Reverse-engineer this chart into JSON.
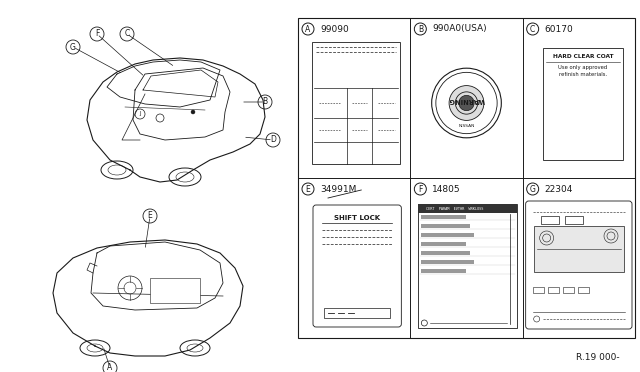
{
  "bg_color": "#ffffff",
  "line_color": "#1a1a1a",
  "figure_width": 6.4,
  "figure_height": 3.72,
  "title_ref": "R.19 000-",
  "gx0": 298,
  "gy0": 18,
  "gx1": 635,
  "gy1": 338,
  "cells": [
    {
      "label": "A",
      "part": "99090",
      "row": 0,
      "col": 0,
      "type": "emission"
    },
    {
      "label": "B",
      "part": "990A0(USA)",
      "row": 0,
      "col": 1,
      "type": "warning_circle"
    },
    {
      "label": "C",
      "part": "60170",
      "row": 0,
      "col": 2,
      "type": "hard_coat"
    },
    {
      "label": "E",
      "part": "34991M",
      "row": 1,
      "col": 0,
      "type": "shift_lock"
    },
    {
      "label": "F",
      "part": "14805",
      "row": 1,
      "col": 1,
      "type": "emission_label"
    },
    {
      "label": "G",
      "part": "22304",
      "row": 1,
      "col": 2,
      "type": "fuse_box"
    }
  ]
}
